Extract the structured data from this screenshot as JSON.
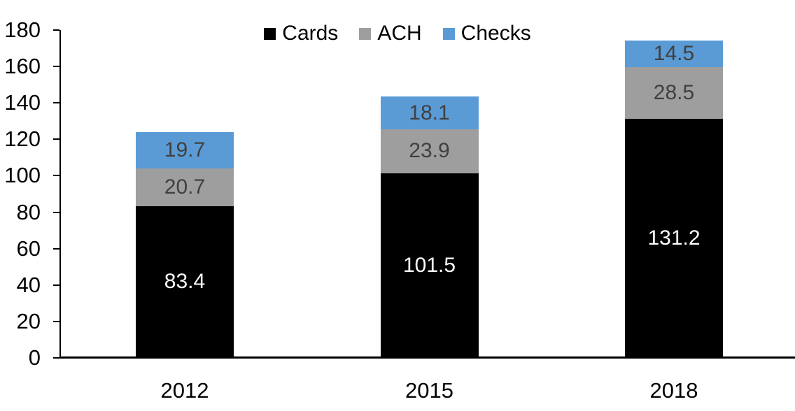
{
  "chart_data": {
    "type": "bar",
    "variant": "stacked-column",
    "categories": [
      "2012",
      "2015",
      "2018"
    ],
    "series": [
      {
        "name": "Cards",
        "color": "#000000",
        "label_color": "#ffffff",
        "values": [
          83.4,
          101.5,
          131.2
        ]
      },
      {
        "name": "ACH",
        "color": "#9E9E9E",
        "label_color": "#404040",
        "values": [
          20.7,
          23.9,
          28.5
        ]
      },
      {
        "name": "Checks",
        "color": "#5B9BD5",
        "label_color": "#404040",
        "values": [
          19.7,
          18.1,
          14.5
        ]
      }
    ],
    "title": "",
    "xlabel": "",
    "ylabel": "",
    "ylim": [
      0,
      180
    ],
    "yticks": [
      0,
      20,
      40,
      60,
      80,
      100,
      120,
      140,
      160,
      180
    ],
    "legend_position": "top-center",
    "grid": false,
    "axis_color": "#000000",
    "data_labels_shown": true
  }
}
